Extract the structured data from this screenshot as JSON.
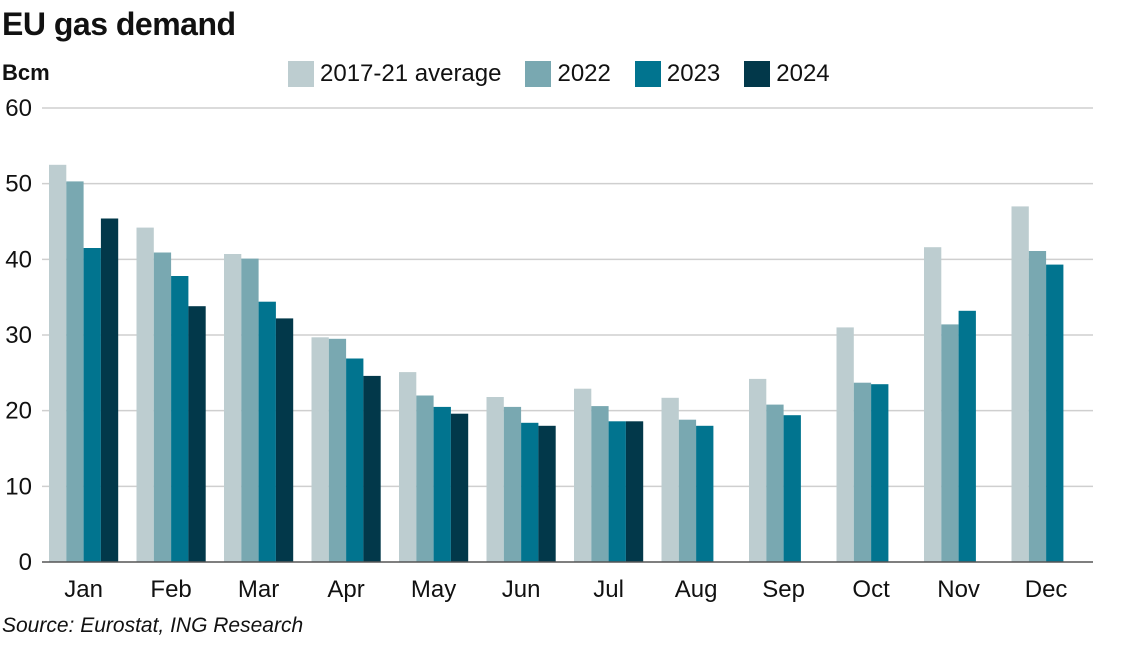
{
  "title": "EU gas demand",
  "unit": "Bcm",
  "source": "Source: Eurostat, ING Research",
  "chart_data": {
    "type": "bar",
    "categories": [
      "Jan",
      "Feb",
      "Mar",
      "Apr",
      "May",
      "Jun",
      "Jul",
      "Aug",
      "Sep",
      "Oct",
      "Nov",
      "Dec"
    ],
    "series": [
      {
        "name": "2017-21 average",
        "color": "#bdcdd0",
        "values": [
          52.5,
          44.2,
          40.7,
          29.7,
          25.1,
          21.8,
          22.9,
          21.7,
          24.2,
          31.0,
          41.6,
          47.0
        ]
      },
      {
        "name": "2022",
        "color": "#79a8b1",
        "values": [
          50.3,
          40.9,
          40.1,
          29.5,
          22.0,
          20.5,
          20.6,
          18.8,
          20.8,
          23.7,
          31.4,
          41.1
        ]
      },
      {
        "name": "2023",
        "color": "#01748f",
        "values": [
          41.5,
          37.8,
          34.4,
          26.9,
          20.5,
          18.4,
          18.6,
          18.0,
          19.4,
          23.5,
          33.2,
          39.3
        ]
      },
      {
        "name": "2024",
        "color": "#02384a",
        "values": [
          45.4,
          33.8,
          32.2,
          24.6,
          19.6,
          18.0,
          18.6,
          null,
          null,
          null,
          null,
          null
        ]
      }
    ],
    "yticks": [
      0,
      10,
      20,
      30,
      40,
      50,
      60
    ],
    "ylim": [
      0,
      60
    ],
    "grid": true,
    "legend_position": "top"
  }
}
